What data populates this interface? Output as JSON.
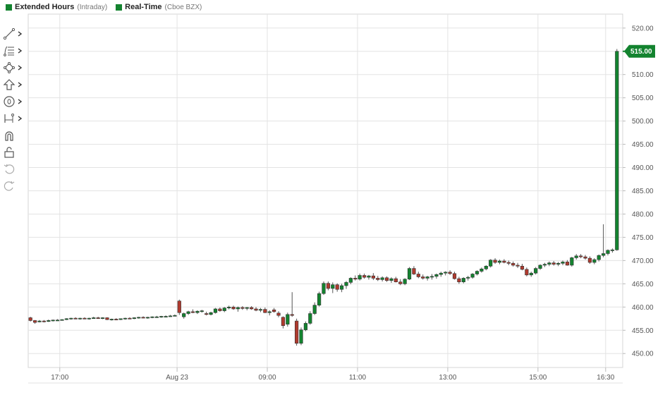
{
  "legend": [
    {
      "name": "Extended Hours",
      "sub": "(Intraday)",
      "color": "#13832f"
    },
    {
      "name": "Real-Time",
      "sub": "(Cboe BZX)",
      "color": "#13832f"
    }
  ],
  "toolbar": [
    {
      "icon": "trendline-icon",
      "has_menu": true
    },
    {
      "icon": "fibonacci-icon",
      "has_menu": true
    },
    {
      "icon": "shapes-icon",
      "has_menu": true
    },
    {
      "icon": "arrow-up-icon",
      "has_menu": true
    },
    {
      "icon": "annotation-icon",
      "has_menu": true
    },
    {
      "icon": "measure-icon",
      "has_menu": true
    },
    {
      "icon": "magnet-icon",
      "has_menu": false
    },
    {
      "icon": "lock-icon",
      "has_menu": false
    },
    {
      "icon": "undo-icon",
      "has_menu": false
    },
    {
      "icon": "redo-icon",
      "has_menu": false
    }
  ],
  "chart_data": {
    "type": "candlestick",
    "ylim": [
      447,
      523
    ],
    "yticks": [
      450,
      455,
      460,
      465,
      470,
      475,
      480,
      485,
      490,
      495,
      500,
      505,
      510,
      515,
      520
    ],
    "ytick_labels": [
      "450.00",
      "455.00",
      "460.00",
      "465.00",
      "470.00",
      "475.00",
      "480.00",
      "485.00",
      "490.00",
      "495.00",
      "500.00",
      "505.00",
      "510.00",
      "515.00",
      "520.00"
    ],
    "xticks": [
      {
        "label": "17:00",
        "pos": 7
      },
      {
        "label": "Aug 23",
        "pos": 33
      },
      {
        "label": "09:00",
        "pos": 53
      },
      {
        "label": "11:00",
        "pos": 73
      },
      {
        "label": "13:00",
        "pos": 93
      },
      {
        "label": "15:00",
        "pos": 113
      },
      {
        "label": "16:30",
        "pos": 128
      }
    ],
    "last_price_label": "515.00",
    "last_price": 515.0,
    "up_color": "#13832f",
    "down_color": "#b03a2e",
    "candles": [
      [
        457.7,
        457.9,
        456.9,
        457.1
      ],
      [
        457.1,
        457.2,
        456.4,
        456.7
      ],
      [
        456.8,
        457.2,
        456.7,
        457.0
      ],
      [
        457.0,
        457.2,
        456.7,
        456.9
      ],
      [
        456.9,
        457.3,
        456.8,
        457.1
      ],
      [
        457.1,
        457.3,
        456.9,
        457.2
      ],
      [
        457.2,
        457.4,
        457.0,
        457.2
      ],
      [
        457.2,
        457.4,
        457.1,
        457.3
      ],
      [
        457.3,
        457.6,
        457.2,
        457.5
      ],
      [
        457.5,
        457.7,
        457.3,
        457.6
      ],
      [
        457.6,
        457.8,
        457.4,
        457.5
      ],
      [
        457.5,
        457.7,
        457.3,
        457.6
      ],
      [
        457.6,
        457.8,
        457.4,
        457.5
      ],
      [
        457.5,
        457.7,
        457.3,
        457.6
      ],
      [
        457.6,
        457.9,
        457.5,
        457.7
      ],
      [
        457.7,
        457.9,
        457.5,
        457.6
      ],
      [
        457.6,
        457.8,
        457.4,
        457.7
      ],
      [
        457.7,
        457.8,
        457.2,
        457.3
      ],
      [
        457.3,
        457.5,
        457.1,
        457.4
      ],
      [
        457.4,
        457.6,
        457.2,
        457.3
      ],
      [
        457.3,
        457.5,
        457.2,
        457.5
      ],
      [
        457.5,
        457.7,
        457.3,
        457.6
      ],
      [
        457.6,
        457.8,
        457.4,
        457.5
      ],
      [
        457.5,
        457.8,
        457.4,
        457.7
      ],
      [
        457.7,
        457.9,
        457.5,
        457.8
      ],
      [
        457.8,
        458.0,
        457.6,
        457.7
      ],
      [
        457.7,
        457.9,
        457.5,
        457.8
      ],
      [
        457.8,
        458.0,
        457.6,
        457.9
      ],
      [
        457.9,
        458.1,
        457.7,
        457.9
      ],
      [
        457.9,
        458.1,
        457.7,
        458.0
      ],
      [
        458.0,
        458.2,
        457.8,
        458.0
      ],
      [
        458.0,
        458.3,
        457.9,
        458.1
      ],
      [
        458.1,
        458.4,
        458.0,
        458.2
      ],
      [
        461.3,
        461.6,
        458.3,
        458.8
      ],
      [
        457.9,
        458.8,
        457.5,
        458.6
      ],
      [
        458.6,
        459.2,
        458.3,
        459.0
      ],
      [
        459.0,
        459.5,
        458.7,
        458.8
      ],
      [
        458.8,
        459.3,
        458.5,
        459.1
      ],
      [
        459.1,
        459.4,
        458.8,
        459.2
      ],
      [
        458.6,
        459.0,
        458.2,
        458.4
      ],
      [
        458.4,
        459.0,
        458.2,
        458.8
      ],
      [
        458.8,
        459.8,
        458.6,
        459.6
      ],
      [
        459.6,
        459.9,
        459.0,
        459.2
      ],
      [
        459.2,
        460.0,
        458.9,
        459.8
      ],
      [
        459.8,
        460.3,
        459.5,
        460.0
      ],
      [
        460.0,
        460.3,
        459.4,
        459.6
      ],
      [
        459.6,
        460.1,
        459.0,
        459.9
      ],
      [
        459.9,
        460.2,
        459.4,
        459.7
      ],
      [
        459.7,
        460.0,
        459.3,
        459.9
      ],
      [
        459.9,
        460.2,
        459.4,
        459.6
      ],
      [
        459.6,
        460.0,
        459.1,
        459.3
      ],
      [
        459.3,
        459.8,
        458.9,
        459.5
      ],
      [
        459.5,
        459.9,
        458.7,
        458.8
      ],
      [
        458.8,
        459.3,
        458.2,
        459.0
      ],
      [
        459.4,
        459.8,
        458.8,
        459.0
      ],
      [
        458.7,
        459.1,
        457.8,
        458.2
      ],
      [
        457.8,
        458.0,
        455.4,
        456.0
      ],
      [
        456.3,
        458.8,
        455.8,
        458.4
      ],
      [
        458.4,
        463.2,
        457.9,
        458.2
      ],
      [
        457.0,
        457.5,
        451.7,
        452.2
      ],
      [
        452.2,
        455.6,
        451.8,
        455.1
      ],
      [
        455.1,
        456.9,
        454.8,
        456.5
      ],
      [
        456.5,
        459.1,
        456.2,
        458.6
      ],
      [
        458.6,
        461.0,
        458.3,
        460.4
      ],
      [
        460.4,
        463.3,
        460.1,
        462.9
      ],
      [
        462.9,
        465.5,
        462.6,
        465.1
      ],
      [
        465.1,
        465.5,
        463.6,
        464.0
      ],
      [
        464.0,
        465.3,
        463.0,
        464.8
      ],
      [
        464.8,
        465.1,
        463.3,
        463.8
      ],
      [
        463.8,
        465.0,
        463.2,
        464.6
      ],
      [
        464.6,
        465.6,
        463.9,
        465.3
      ],
      [
        465.3,
        466.4,
        464.9,
        466.2
      ],
      [
        466.2,
        466.8,
        465.7,
        466.0
      ],
      [
        466.0,
        467.2,
        465.7,
        466.8
      ],
      [
        466.8,
        467.2,
        466.1,
        466.4
      ],
      [
        466.4,
        466.9,
        465.9,
        466.7
      ],
      [
        466.7,
        467.3,
        465.8,
        466.2
      ],
      [
        466.2,
        466.7,
        465.6,
        465.9
      ],
      [
        465.9,
        466.6,
        465.5,
        466.3
      ],
      [
        466.3,
        466.6,
        465.4,
        465.7
      ],
      [
        465.7,
        466.4,
        465.2,
        466.1
      ],
      [
        466.1,
        466.5,
        465.3,
        465.4
      ],
      [
        465.4,
        466.0,
        464.7,
        465.0
      ],
      [
        465.0,
        466.2,
        464.7,
        466.0
      ],
      [
        466.0,
        468.6,
        465.8,
        468.3
      ],
      [
        468.3,
        468.8,
        466.9,
        467.1
      ],
      [
        467.1,
        467.6,
        466.2,
        466.5
      ],
      [
        466.5,
        467.0,
        465.9,
        466.2
      ],
      [
        466.2,
        466.7,
        465.7,
        466.5
      ],
      [
        466.5,
        467.1,
        465.9,
        466.6
      ],
      [
        466.6,
        467.2,
        466.1,
        467.0
      ],
      [
        467.0,
        467.6,
        466.5,
        467.3
      ],
      [
        467.3,
        467.7,
        466.8,
        467.5
      ],
      [
        467.5,
        467.9,
        466.9,
        467.2
      ],
      [
        467.2,
        467.6,
        465.9,
        466.1
      ],
      [
        466.1,
        466.5,
        465.0,
        465.4
      ],
      [
        465.4,
        466.4,
        465.1,
        466.2
      ],
      [
        466.2,
        466.7,
        465.7,
        466.4
      ],
      [
        466.4,
        467.3,
        466.1,
        467.1
      ],
      [
        467.1,
        467.9,
        466.8,
        467.7
      ],
      [
        467.7,
        468.5,
        467.4,
        468.2
      ],
      [
        468.2,
        469.0,
        467.9,
        468.8
      ],
      [
        468.8,
        470.3,
        468.5,
        470.1
      ],
      [
        470.1,
        470.5,
        469.3,
        469.6
      ],
      [
        469.6,
        470.2,
        469.2,
        469.9
      ],
      [
        469.9,
        470.3,
        469.4,
        469.6
      ],
      [
        469.6,
        470.0,
        469.0,
        469.4
      ],
      [
        469.4,
        469.8,
        468.7,
        469.0
      ],
      [
        469.0,
        469.5,
        468.4,
        468.8
      ],
      [
        468.8,
        469.3,
        467.9,
        468.1
      ],
      [
        468.1,
        468.5,
        466.6,
        466.9
      ],
      [
        466.9,
        467.6,
        466.5,
        467.3
      ],
      [
        467.3,
        468.6,
        467.0,
        468.3
      ],
      [
        468.3,
        469.2,
        468.0,
        469.0
      ],
      [
        469.0,
        469.5,
        468.6,
        469.2
      ],
      [
        469.2,
        469.8,
        468.8,
        469.5
      ],
      [
        469.5,
        469.9,
        468.9,
        469.2
      ],
      [
        469.2,
        469.7,
        468.8,
        469.4
      ],
      [
        469.4,
        470.0,
        469.0,
        469.7
      ],
      [
        469.7,
        470.1,
        468.9,
        469.0
      ],
      [
        469.0,
        470.8,
        468.7,
        470.6
      ],
      [
        470.6,
        471.4,
        470.2,
        471.0
      ],
      [
        471.0,
        471.4,
        470.5,
        470.8
      ],
      [
        470.8,
        471.2,
        470.2,
        470.5
      ],
      [
        470.5,
        470.9,
        469.3,
        469.6
      ],
      [
        469.6,
        470.5,
        469.2,
        470.2
      ],
      [
        470.2,
        471.3,
        469.8,
        471.1
      ],
      [
        471.1,
        477.8,
        470.7,
        471.5
      ],
      [
        471.5,
        472.4,
        471.1,
        472.2
      ],
      [
        472.2,
        472.6,
        471.7,
        472.3
      ],
      [
        472.3,
        515.5,
        472.1,
        515.0
      ]
    ]
  }
}
